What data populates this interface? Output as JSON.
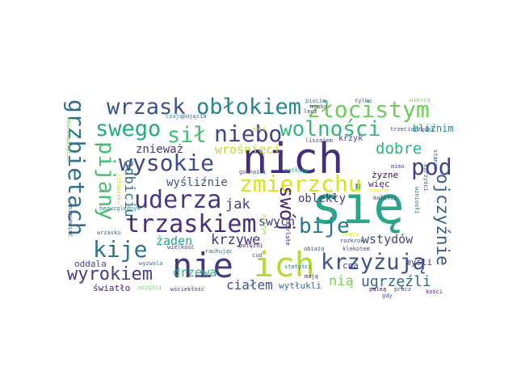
{
  "word_cloud": {
    "words": [
      {
        "text": "się",
        "color": "#2aa58a"
      },
      {
        "text": "nich",
        "color": "#462c7b"
      },
      {
        "text": "ich",
        "color": "#b0dd2f"
      },
      {
        "text": "nie",
        "color": "#433a83"
      },
      {
        "text": "wrzask",
        "color": "#3b528b"
      },
      {
        "text": "obłokiem",
        "color": "#25858e"
      },
      {
        "text": "złocistym",
        "color": "#6ccd5a"
      },
      {
        "text": "swego",
        "color": "#23a983"
      },
      {
        "text": "wolności",
        "color": "#34b679"
      },
      {
        "text": "sił",
        "color": "#42be71"
      },
      {
        "text": "niebo",
        "color": "#414487"
      },
      {
        "text": "wysokie",
        "color": "#3e4a89"
      },
      {
        "text": "pod",
        "color": "#404588"
      },
      {
        "text": "zmierzchu",
        "color": "#d8e219"
      },
      {
        "text": "uderza",
        "color": "#443983"
      },
      {
        "text": "trzaskiem",
        "color": "#472d7b"
      },
      {
        "text": "kije",
        "color": "#2c728e"
      },
      {
        "text": "bije",
        "color": "#2a768e"
      },
      {
        "text": "krzyżują",
        "color": "#3b528b"
      },
      {
        "text": "wyrokiem",
        "color": "#433e85"
      },
      {
        "text": "grzbietach",
        "color": "#2d708e"
      },
      {
        "text": "pijany",
        "color": "#46c06f"
      },
      {
        "text": "swój",
        "color": "#482475"
      },
      {
        "text": "ojczyźnie",
        "color": "#375a8c"
      },
      {
        "text": "dobre",
        "color": "#2fb47c"
      },
      {
        "text": "ugrzęźli",
        "color": "#31688e"
      },
      {
        "text": "krzywe",
        "color": "#46327e"
      },
      {
        "text": "wstydów",
        "color": "#404688"
      },
      {
        "text": "jak",
        "color": "#414487"
      },
      {
        "text": "żaden",
        "color": "#22a884"
      },
      {
        "text": "drzewa",
        "color": "#35b779"
      },
      {
        "text": "ciałem",
        "color": "#3b528b"
      },
      {
        "text": "nią",
        "color": "#7ad151"
      },
      {
        "text": "wrośnięci",
        "color": "#bddf26"
      },
      {
        "text": "swych",
        "color": "#424186"
      },
      {
        "text": "znieważ",
        "color": "#46327e"
      },
      {
        "text": "wyśliźnie",
        "color": "#39558c"
      },
      {
        "text": "oblekły",
        "color": "#443983"
      },
      {
        "text": "bliźnim",
        "color": "#1f988b"
      },
      {
        "text": "odbiciu",
        "color": "#2a788e"
      },
      {
        "text": "oddala",
        "color": "#3e4989"
      },
      {
        "text": "światło",
        "color": "#482173"
      },
      {
        "text": "wytłukli",
        "color": "#31688e"
      },
      {
        "text": "myśli",
        "color": "#453781"
      },
      {
        "text": "więc",
        "color": "#482576"
      },
      {
        "text": "żyzne",
        "color": "#440154"
      },
      {
        "text": "cna",
        "color": "#443a83"
      },
      {
        "text": "krzyk",
        "color": "#414487"
      },
      {
        "text": "liszajem",
        "color": "#3e4989"
      },
      {
        "text": "trzeciorzędni",
        "color": "#404588"
      },
      {
        "text": "czują",
        "color": "#26828e"
      },
      {
        "text": "pojęcia",
        "color": "#33638d"
      },
      {
        "text": "piucia",
        "color": "#2c728e"
      },
      {
        "text": "tylko",
        "color": "#3b528b"
      },
      {
        "text": "wierzą",
        "color": "#7ad151"
      },
      {
        "text": "mroku",
        "color": "#3e4989"
      },
      {
        "text": "lecz",
        "color": "#443983"
      },
      {
        "text": "gołd",
        "color": "#b5de2b"
      },
      {
        "text": "godności",
        "color": "#3b528b"
      },
      {
        "text": "zatłuką",
        "color": "#1f9e89"
      },
      {
        "text": "statyści",
        "color": "#2c728e"
      },
      {
        "text": "mają",
        "color": "#472a7a"
      },
      {
        "text": "klekotem",
        "color": "#3e4989"
      },
      {
        "text": "obiażą",
        "color": "#3b528b"
      },
      {
        "text": "skarlałe",
        "color": "#443983"
      },
      {
        "text": "potężni",
        "color": "#481f70"
      },
      {
        "text": "rachując",
        "color": "#2c728e"
      },
      {
        "text": "cud",
        "color": "#38598c"
      },
      {
        "text": "wściekłość",
        "color": "#46327e"
      },
      {
        "text": "oczyści",
        "color": "#6ccd5a"
      },
      {
        "text": "wyzwala",
        "color": "#2a788e"
      },
      {
        "text": "wielkość",
        "color": "#433e85"
      },
      {
        "text": "wrzasku",
        "color": "#31688e"
      },
      {
        "text": "bezwzględnym",
        "color": "#25848e"
      },
      {
        "text": "człowieku",
        "color": "#cde11d"
      },
      {
        "text": "niewawiść",
        "color": "#3e4989"
      },
      {
        "text": "wniebowzięcia",
        "color": "#6ece58"
      },
      {
        "text": "niczym",
        "color": "#90d743"
      },
      {
        "text": "smarze",
        "color": "#fde725"
      },
      {
        "text": "małości",
        "color": "#404588"
      },
      {
        "text": "wzniosłi",
        "color": "#31688e"
      },
      {
        "text": "korzyści",
        "color": "#3b528b"
      },
      {
        "text": "stania",
        "color": "#38598c"
      },
      {
        "text": "mimo",
        "color": "#3e4989"
      },
      {
        "text": "paleą",
        "color": "#440154"
      },
      {
        "text": "gdy",
        "color": "#3b528b"
      },
      {
        "text": "prócz",
        "color": "#443983"
      },
      {
        "text": "kości",
        "color": "#482475"
      },
      {
        "text": "rozkrok",
        "color": "#3e4989"
      },
      {
        "text": "czasu",
        "color": "#dde318"
      }
    ]
  }
}
